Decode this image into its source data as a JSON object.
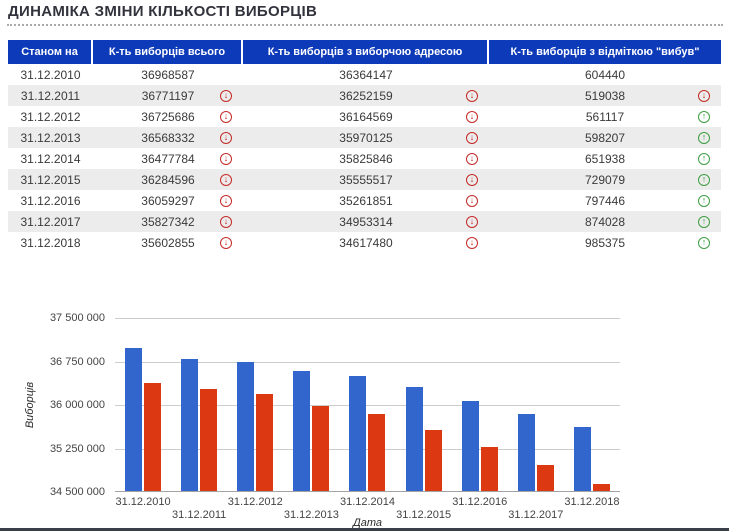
{
  "page": {
    "title": "ДИНАМІКА ЗМІНИ КІЛЬКОСТІ ВИБОРЦІВ"
  },
  "icons": {
    "trend_down": "↓",
    "trend_up": "↑"
  },
  "colors": {
    "header_bg": "#0d3ab8",
    "row_alt_bg": "#ececec",
    "trend_down": "#c52a27",
    "trend_up": "#3d9e42",
    "bar_total": "#3366cc",
    "bar_with_address": "#dc3912"
  },
  "table": {
    "headers": [
      "Станом на",
      "К-ть виборців всього",
      "К-ть виборців з виборчою адресою",
      "К-ть виборців з відміткою \"вибув\""
    ],
    "rows": [
      {
        "date": "31.12.2010",
        "total": "36968587",
        "total_trend": null,
        "with_address": "36364147",
        "with_address_trend": null,
        "departed": "604440",
        "departed_trend": null
      },
      {
        "date": "31.12.2011",
        "total": "36771197",
        "total_trend": "down",
        "with_address": "36252159",
        "with_address_trend": "down",
        "departed": "519038",
        "departed_trend": "down"
      },
      {
        "date": "31.12.2012",
        "total": "36725686",
        "total_trend": "down",
        "with_address": "36164569",
        "with_address_trend": "down",
        "departed": "561117",
        "departed_trend": "up"
      },
      {
        "date": "31.12.2013",
        "total": "36568332",
        "total_trend": "down",
        "with_address": "35970125",
        "with_address_trend": "down",
        "departed": "598207",
        "departed_trend": "up"
      },
      {
        "date": "31.12.2014",
        "total": "36477784",
        "total_trend": "down",
        "with_address": "35825846",
        "with_address_trend": "down",
        "departed": "651938",
        "departed_trend": "up"
      },
      {
        "date": "31.12.2015",
        "total": "36284596",
        "total_trend": "down",
        "with_address": "35555517",
        "with_address_trend": "down",
        "departed": "729079",
        "departed_trend": "up"
      },
      {
        "date": "31.12.2016",
        "total": "36059297",
        "total_trend": "down",
        "with_address": "35261851",
        "with_address_trend": "down",
        "departed": "797446",
        "departed_trend": "up"
      },
      {
        "date": "31.12.2017",
        "total": "35827342",
        "total_trend": "down",
        "with_address": "34953314",
        "with_address_trend": "down",
        "departed": "874028",
        "departed_trend": "up"
      },
      {
        "date": "31.12.2018",
        "total": "35602855",
        "total_trend": "down",
        "with_address": "34617480",
        "with_address_trend": "down",
        "departed": "985375",
        "departed_trend": "up"
      }
    ]
  },
  "chart_data": {
    "type": "bar",
    "categories": [
      "31.12.2010",
      "31.12.2011",
      "31.12.2012",
      "31.12.2013",
      "31.12.2014",
      "31.12.2015",
      "31.12.2016",
      "31.12.2017",
      "31.12.2018"
    ],
    "series": [
      {
        "name": "К-ть виборців всього",
        "color": "#3366cc",
        "values": [
          36968587,
          36771197,
          36725686,
          36568332,
          36477784,
          36284596,
          36059297,
          35827342,
          35602855
        ]
      },
      {
        "name": "К-ть виборців з виборчою адресою",
        "color": "#dc3912",
        "values": [
          36364147,
          36252159,
          36164569,
          35970125,
          35825846,
          35555517,
          35261851,
          34953314,
          34617480
        ]
      }
    ],
    "title": "",
    "xlabel": "Дата",
    "ylabel": "Виборців",
    "ylim": [
      34500000,
      37500000
    ],
    "yticks": [
      "37 500 000",
      "36 750 000",
      "36 000 000",
      "35 250 000",
      "34 500 000"
    ],
    "grid": true,
    "legend": "none"
  }
}
